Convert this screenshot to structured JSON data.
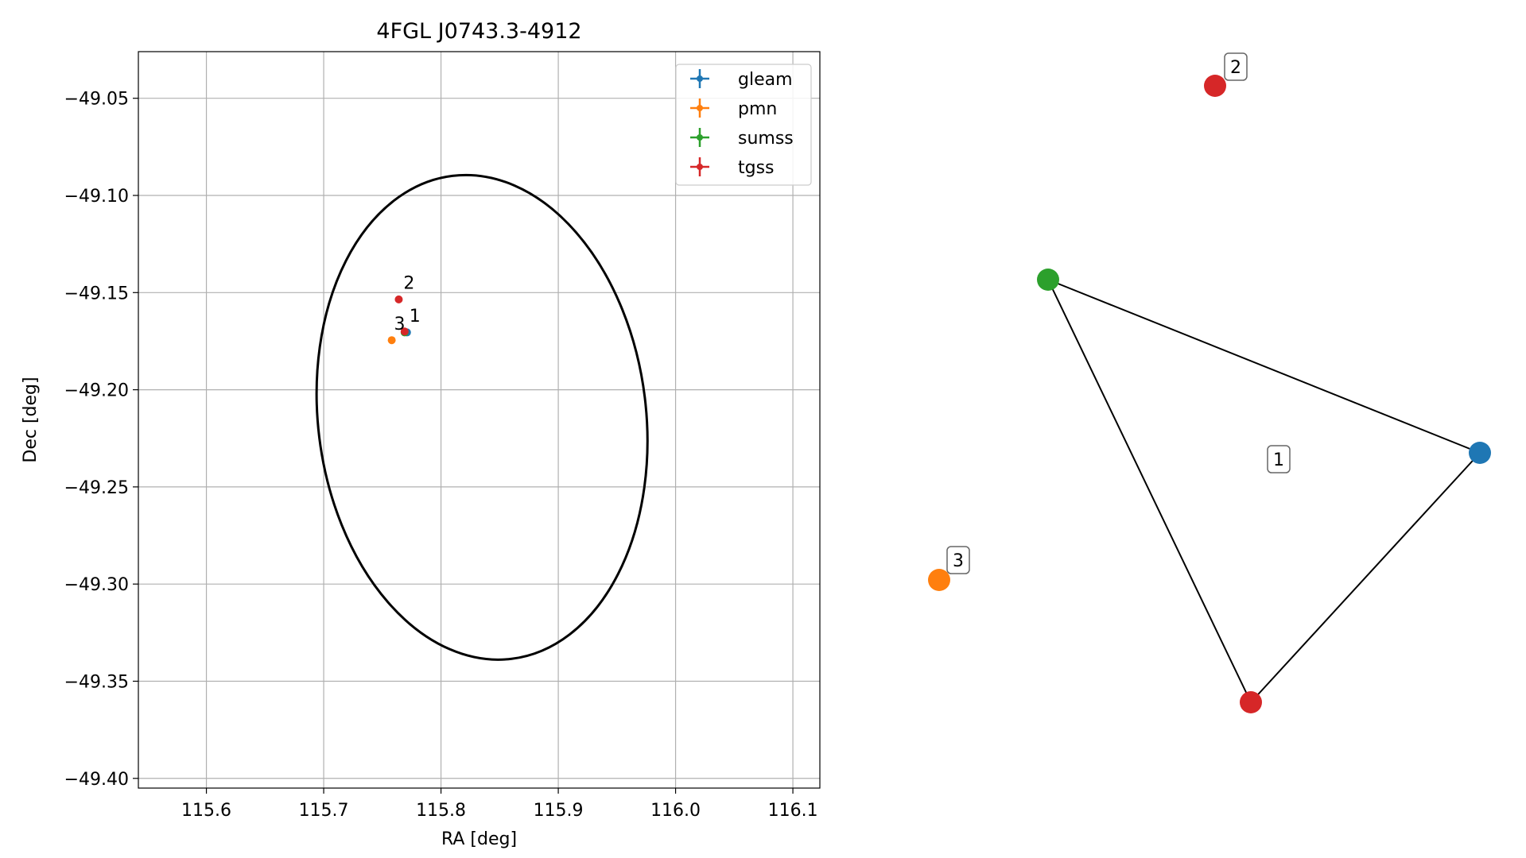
{
  "chart_data": [
    {
      "type": "scatter",
      "title": "4FGL J0743.3-4912",
      "xlabel": "RA [deg]",
      "ylabel": "Dec [deg]",
      "xlim": [
        115.542,
        116.123
      ],
      "ylim": [
        -49.405,
        -49.026
      ],
      "xticks": [
        115.6,
        115.7,
        115.8,
        115.9,
        116.0,
        116.1
      ],
      "xtick_labels": [
        "115.6",
        "115.7",
        "115.8",
        "115.9",
        "116.0",
        "116.1"
      ],
      "yticks": [
        -49.05,
        -49.1,
        -49.15,
        -49.2,
        -49.25,
        -49.3,
        -49.35,
        -49.4
      ],
      "ytick_labels": [
        "−49.05",
        "−49.10",
        "−49.15",
        "−49.20",
        "−49.25",
        "−49.30",
        "−49.35",
        "−49.40"
      ],
      "grid": true,
      "legend_position": "top-right",
      "series": [
        {
          "name": "gleam",
          "color": "#1f77b4",
          "points": [
            {
              "x": 115.771,
              "y": -49.1705
            }
          ]
        },
        {
          "name": "pmn",
          "color": "#ff7f0e",
          "points": [
            {
              "x": 115.758,
              "y": -49.1745
            }
          ]
        },
        {
          "name": "sumss",
          "color": "#2ca02c",
          "points": [
            {
              "x": 115.769,
              "y": -49.1705
            }
          ]
        },
        {
          "name": "tgss",
          "color": "#d62728",
          "points": [
            {
              "x": 115.764,
              "y": -49.1535
            },
            {
              "x": 115.769,
              "y": -49.17
            }
          ]
        }
      ],
      "ellipse": {
        "center_ra": 115.835,
        "center_dec": -49.2142,
        "ra_half_width": 0.1398,
        "dec_half_height": 0.1252,
        "color": "#000000"
      },
      "annotations": [
        {
          "text": "1",
          "x": 115.773,
          "y": -49.165
        },
        {
          "text": "2",
          "x": 115.768,
          "y": -49.148
        },
        {
          "text": "3",
          "x": 115.76,
          "y": -49.169
        }
      ]
    },
    {
      "type": "graph",
      "nodes": [
        {
          "id": "gleam",
          "color": "#1f77b4"
        },
        {
          "id": "pmn",
          "color": "#ff7f0e"
        },
        {
          "id": "sumss",
          "color": "#2ca02c"
        },
        {
          "id": "tgss_a",
          "color": "#d62728"
        },
        {
          "id": "tgss_b",
          "color": "#d62728"
        }
      ],
      "edges": [
        [
          "sumss",
          "gleam"
        ],
        [
          "sumss",
          "tgss_b"
        ],
        [
          "tgss_b",
          "gleam"
        ]
      ],
      "labels": [
        {
          "text": "1",
          "group": [
            "sumss",
            "gleam",
            "tgss_b"
          ]
        },
        {
          "text": "2",
          "group": [
            "tgss_a"
          ]
        },
        {
          "text": "3",
          "group": [
            "pmn"
          ]
        }
      ]
    }
  ]
}
